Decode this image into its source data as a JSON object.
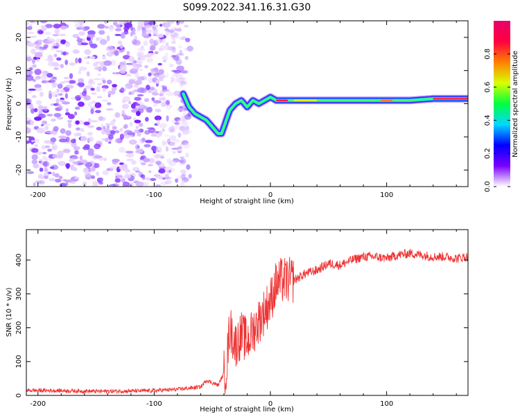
{
  "title": "S099.2022.341.16.31.G30",
  "chart_data": [
    {
      "type": "heatmap",
      "xlabel": "Height of straight line (km)",
      "ylabel": "Frequency (Hz)",
      "xlim": [
        -210,
        170
      ],
      "ylim": [
        -25,
        25
      ],
      "xticks": [
        -200,
        -100,
        0,
        100
      ],
      "yticks": [
        -20,
        -10,
        0,
        10,
        20
      ],
      "colorbar": {
        "label": "Normalized spectral amplitude",
        "range": [
          0.0,
          1.0
        ],
        "ticks": [
          0.0,
          0.2,
          0.4,
          0.6,
          0.8
        ],
        "colors": [
          "#ffffff",
          "#7a00ff",
          "#0000ff",
          "#00d8ff",
          "#00ff40",
          "#d8ff00",
          "#ff8000",
          "#ff0040",
          "#e8006a"
        ]
      },
      "trace": {
        "x": [
          -75,
          -70,
          -65,
          -60,
          -55,
          -50,
          -45,
          -42,
          -40,
          -35,
          -30,
          -25,
          -20,
          -15,
          -10,
          -5,
          0,
          5,
          10,
          20,
          40,
          60,
          80,
          100,
          120,
          140,
          160,
          170
        ],
        "y": [
          3,
          -1,
          -3,
          -4,
          -5,
          -7,
          -9,
          -9,
          -7,
          -2,
          0,
          1,
          -1,
          1,
          0,
          1,
          2,
          1,
          1,
          1,
          1,
          1,
          1,
          1,
          1,
          1.5,
          1.5,
          1.5
        ]
      },
      "noise_region_x": [
        -210,
        -75
      ]
    },
    {
      "type": "line",
      "xlabel": "Height of straight line (km)",
      "ylabel": "SNR (10 * v/v)",
      "xlim": [
        -210,
        170
      ],
      "ylim": [
        0,
        490
      ],
      "xticks": [
        -200,
        -100,
        0,
        100
      ],
      "yticks": [
        0,
        100,
        200,
        300,
        400
      ],
      "series": [
        {
          "color": "#ee3333",
          "x": [
            -210,
            -180,
            -150,
            -120,
            -100,
            -80,
            -60,
            -55,
            -45,
            -38,
            -35,
            -30,
            -25,
            -20,
            -15,
            -10,
            -5,
            0,
            5,
            10,
            15,
            20,
            25,
            30,
            40,
            50,
            60,
            70,
            80,
            90,
            100,
            110,
            120,
            130,
            140,
            150,
            160,
            170
          ],
          "y": [
            15,
            14,
            12,
            13,
            14,
            18,
            25,
            45,
            30,
            80,
            200,
            150,
            180,
            160,
            190,
            220,
            250,
            280,
            330,
            340,
            340,
            340,
            350,
            360,
            370,
            390,
            385,
            400,
            410,
            410,
            405,
            415,
            420,
            415,
            410,
            410,
            405,
            410
          ]
        }
      ]
    }
  ]
}
